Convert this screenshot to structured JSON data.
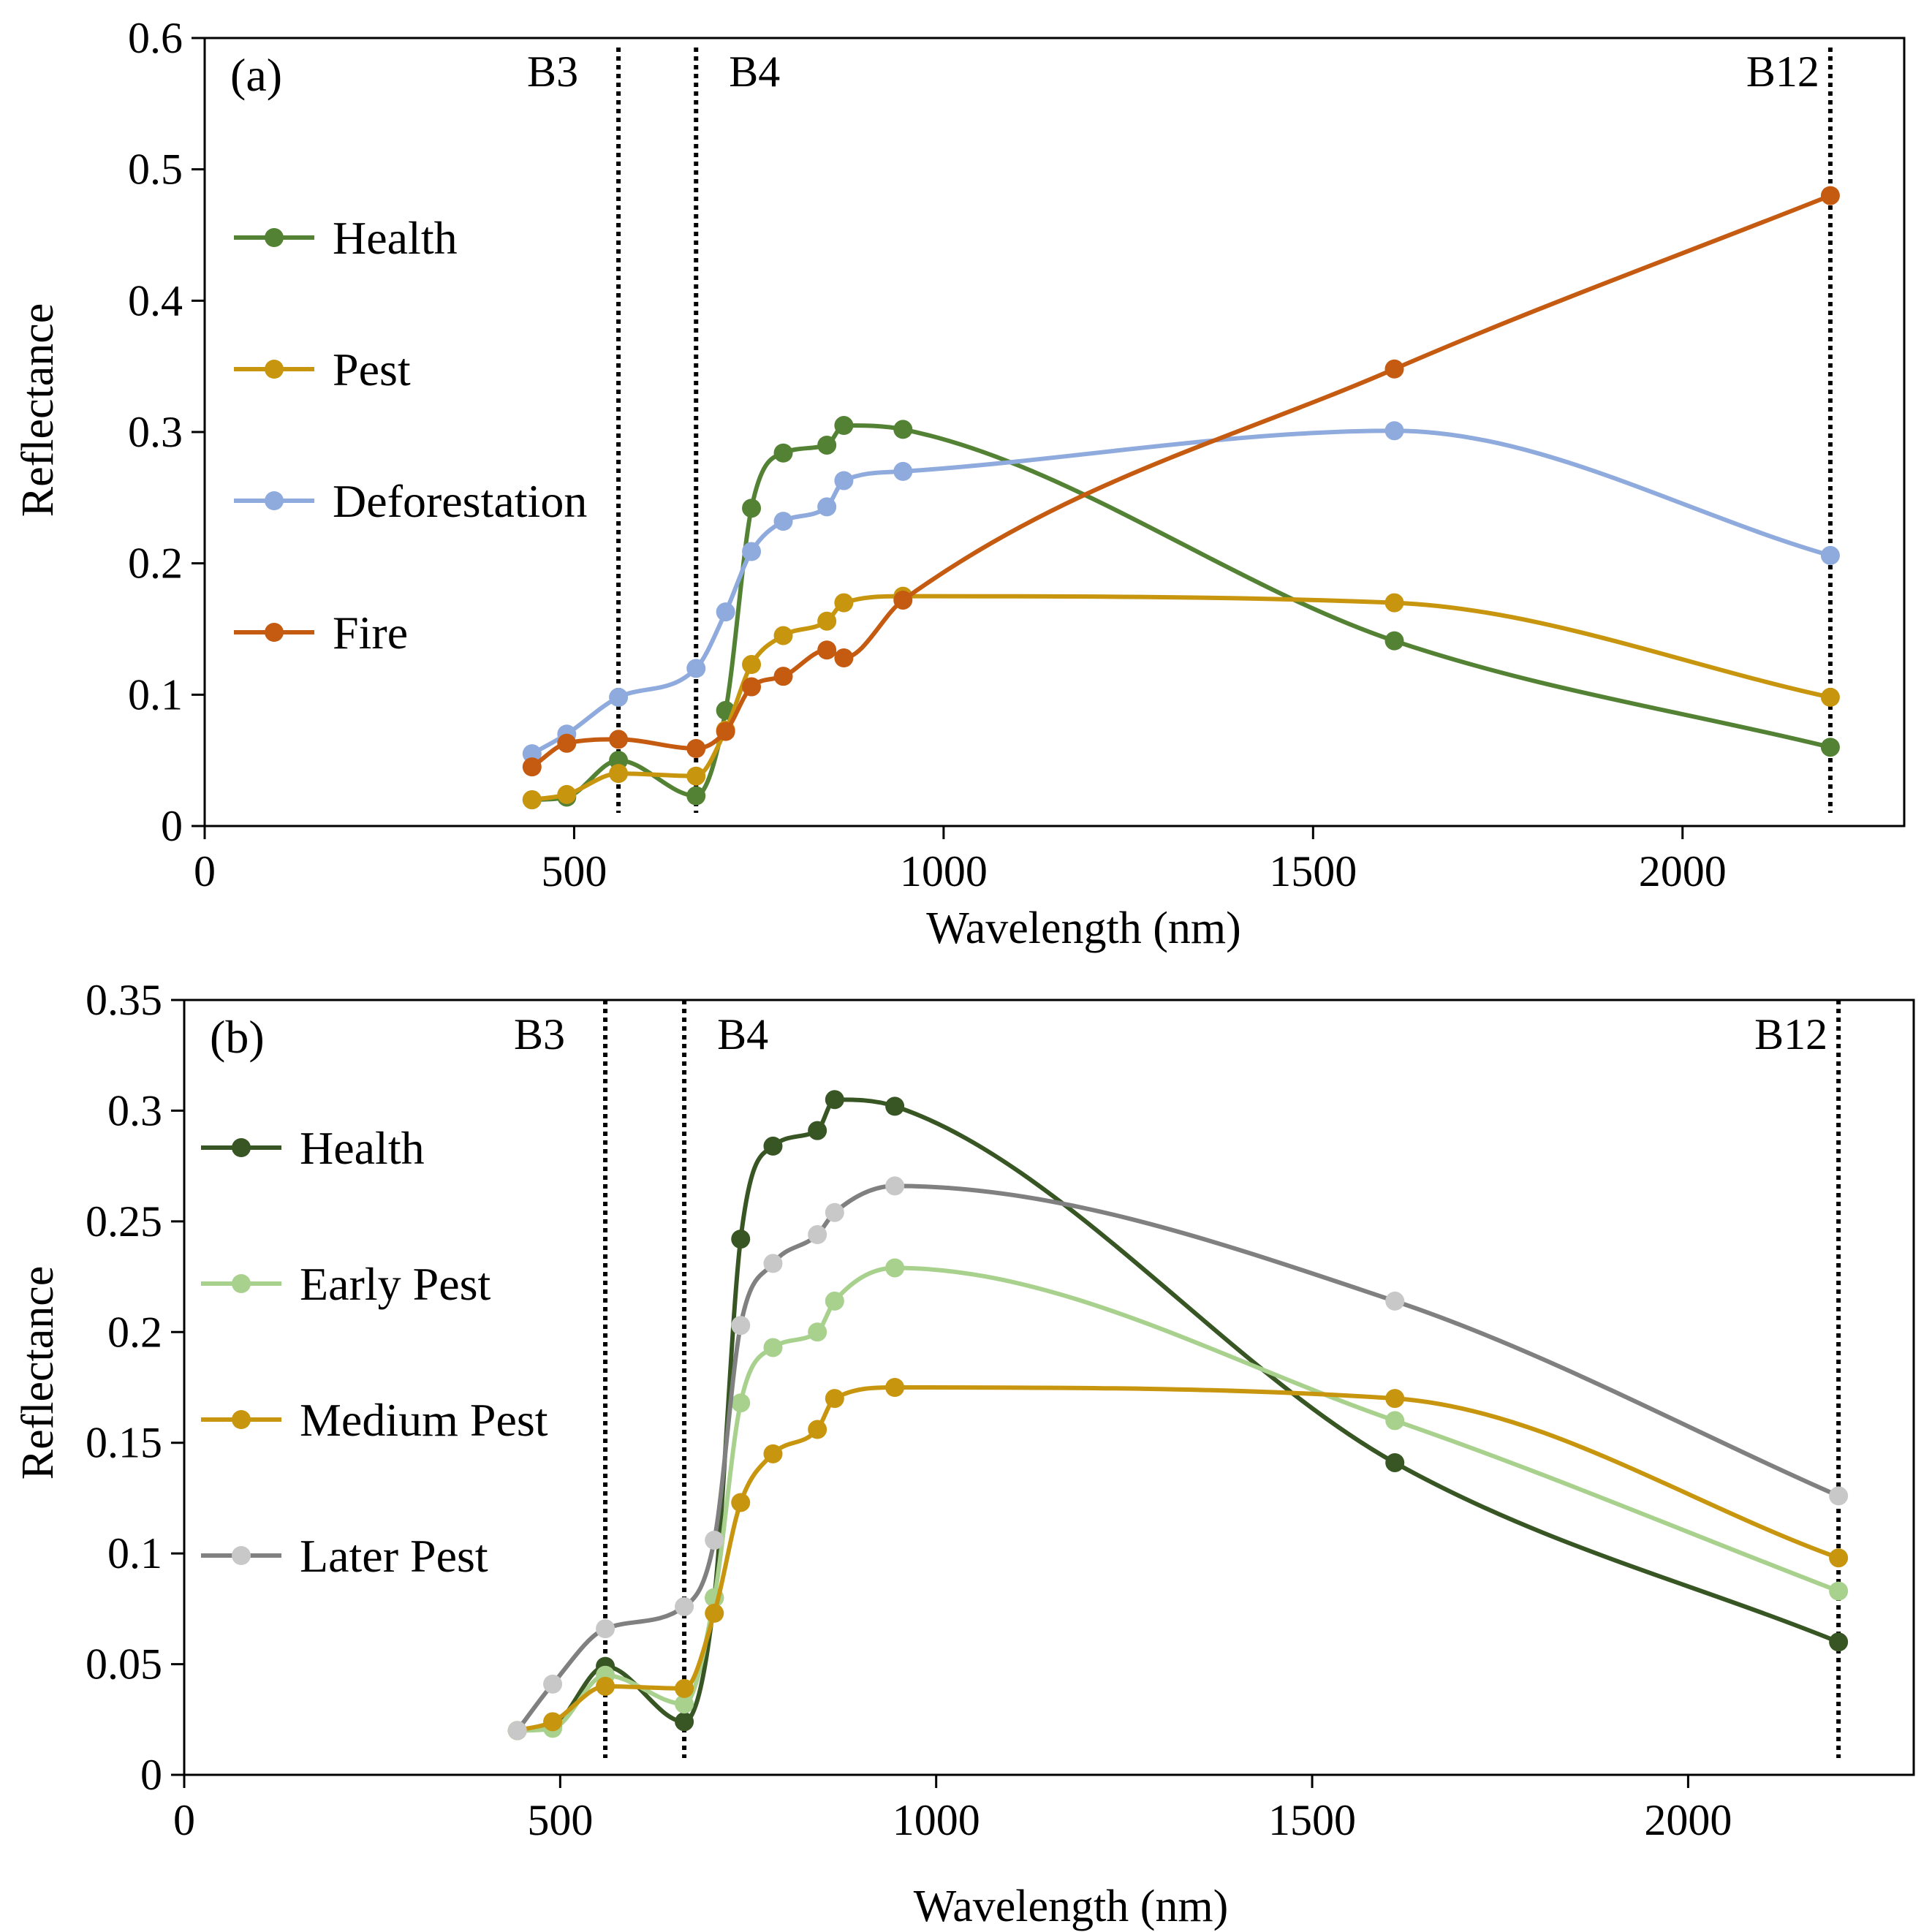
{
  "chart_data": [
    {
      "type": "line",
      "panel_label": "(a)",
      "xlabel": "Wavelength (nm)",
      "ylabel": "Reflectance",
      "xlim": [
        0,
        2300
      ],
      "ylim": [
        0,
        0.6
      ],
      "xticks": [
        0,
        500,
        1000,
        1500,
        2000
      ],
      "yticks": [
        0,
        0.1,
        0.2,
        0.3,
        0.4,
        0.5,
        0.6
      ],
      "ytick_labels": [
        "0",
        "0.1",
        "0.2",
        "0.3",
        "0.4",
        "0.5",
        "0.6"
      ],
      "legend_position": "center-left",
      "reference_lines": [
        {
          "label": "B3",
          "x": 560
        },
        {
          "label": "B4",
          "x": 665
        },
        {
          "label": "B12",
          "x": 2200
        }
      ],
      "series": [
        {
          "name": "Health",
          "color": "#548235",
          "marker_color": "#548235",
          "x": [
            443,
            490,
            560,
            665,
            705,
            740,
            783,
            842,
            865,
            945,
            1610,
            2200
          ],
          "y": [
            0.02,
            0.022,
            0.05,
            0.023,
            0.088,
            0.242,
            0.284,
            0.29,
            0.305,
            0.302,
            0.141,
            0.06
          ]
        },
        {
          "name": "Pest",
          "color": "#C8960E",
          "marker_color": "#C8960E",
          "x": [
            443,
            490,
            560,
            665,
            705,
            740,
            783,
            842,
            865,
            945,
            1610,
            2200
          ],
          "y": [
            0.02,
            0.024,
            0.04,
            0.038,
            0.073,
            0.123,
            0.145,
            0.156,
            0.17,
            0.175,
            0.17,
            0.098
          ]
        },
        {
          "name": "Deforestation",
          "color": "#8FAADC",
          "marker_color": "#8FAADC",
          "x": [
            443,
            490,
            560,
            665,
            705,
            740,
            783,
            842,
            865,
            945,
            1610,
            2200
          ],
          "y": [
            0.055,
            0.07,
            0.098,
            0.12,
            0.163,
            0.209,
            0.232,
            0.243,
            0.263,
            0.27,
            0.301,
            0.206
          ]
        },
        {
          "name": "Fire",
          "color": "#C55A11",
          "marker_color": "#C55A11",
          "x": [
            443,
            490,
            560,
            665,
            705,
            740,
            783,
            842,
            865,
            945,
            1610,
            2200
          ],
          "y": [
            0.045,
            0.063,
            0.066,
            0.059,
            0.072,
            0.106,
            0.114,
            0.134,
            0.128,
            0.172,
            0.348,
            0.48
          ]
        }
      ]
    },
    {
      "type": "line",
      "panel_label": "(b)",
      "xlabel": "Wavelength (nm)",
      "ylabel": "Reflectance",
      "xlim": [
        0,
        2300
      ],
      "ylim": [
        0,
        0.35
      ],
      "xticks": [
        0,
        500,
        1000,
        1500,
        2000
      ],
      "yticks": [
        0,
        0.05,
        0.1,
        0.15,
        0.2,
        0.25,
        0.3,
        0.35
      ],
      "ytick_labels": [
        "0",
        "0.05",
        "0.1",
        "0.15",
        "0.2",
        "0.25",
        "0.3",
        "0.35"
      ],
      "legend_position": "center-left",
      "reference_lines": [
        {
          "label": "B3",
          "x": 560
        },
        {
          "label": "B4",
          "x": 665
        },
        {
          "label": "B12",
          "x": 2200
        }
      ],
      "series": [
        {
          "name": "Health",
          "color": "#375623",
          "marker_color": "#375623",
          "x": [
            443,
            490,
            560,
            665,
            705,
            740,
            783,
            842,
            865,
            945,
            1610,
            2200
          ],
          "y": [
            0.02,
            0.022,
            0.049,
            0.024,
            0.08,
            0.242,
            0.284,
            0.291,
            0.305,
            0.302,
            0.141,
            0.06
          ]
        },
        {
          "name": "Early Pest",
          "color": "#A9D18E",
          "marker_color": "#A9D18E",
          "x": [
            443,
            490,
            560,
            665,
            705,
            740,
            783,
            842,
            865,
            945,
            1610,
            2200
          ],
          "y": [
            0.02,
            0.021,
            0.045,
            0.032,
            0.08,
            0.168,
            0.193,
            0.2,
            0.214,
            0.229,
            0.16,
            0.083
          ]
        },
        {
          "name": "Medium Pest",
          "color": "#C8960E",
          "marker_color": "#C8960E",
          "x": [
            443,
            490,
            560,
            665,
            705,
            740,
            783,
            842,
            865,
            945,
            1610,
            2200
          ],
          "y": [
            0.02,
            0.024,
            0.04,
            0.039,
            0.073,
            0.123,
            0.145,
            0.156,
            0.17,
            0.175,
            0.17,
            0.098
          ]
        },
        {
          "name": "Later Pest",
          "color": "#808080",
          "marker_color": "#C8C8C8",
          "x": [
            443,
            490,
            560,
            665,
            705,
            740,
            783,
            842,
            865,
            945,
            1610,
            2200
          ],
          "y": [
            0.02,
            0.041,
            0.066,
            0.076,
            0.106,
            0.203,
            0.231,
            0.244,
            0.254,
            0.266,
            0.214,
            0.126
          ]
        }
      ]
    }
  ]
}
